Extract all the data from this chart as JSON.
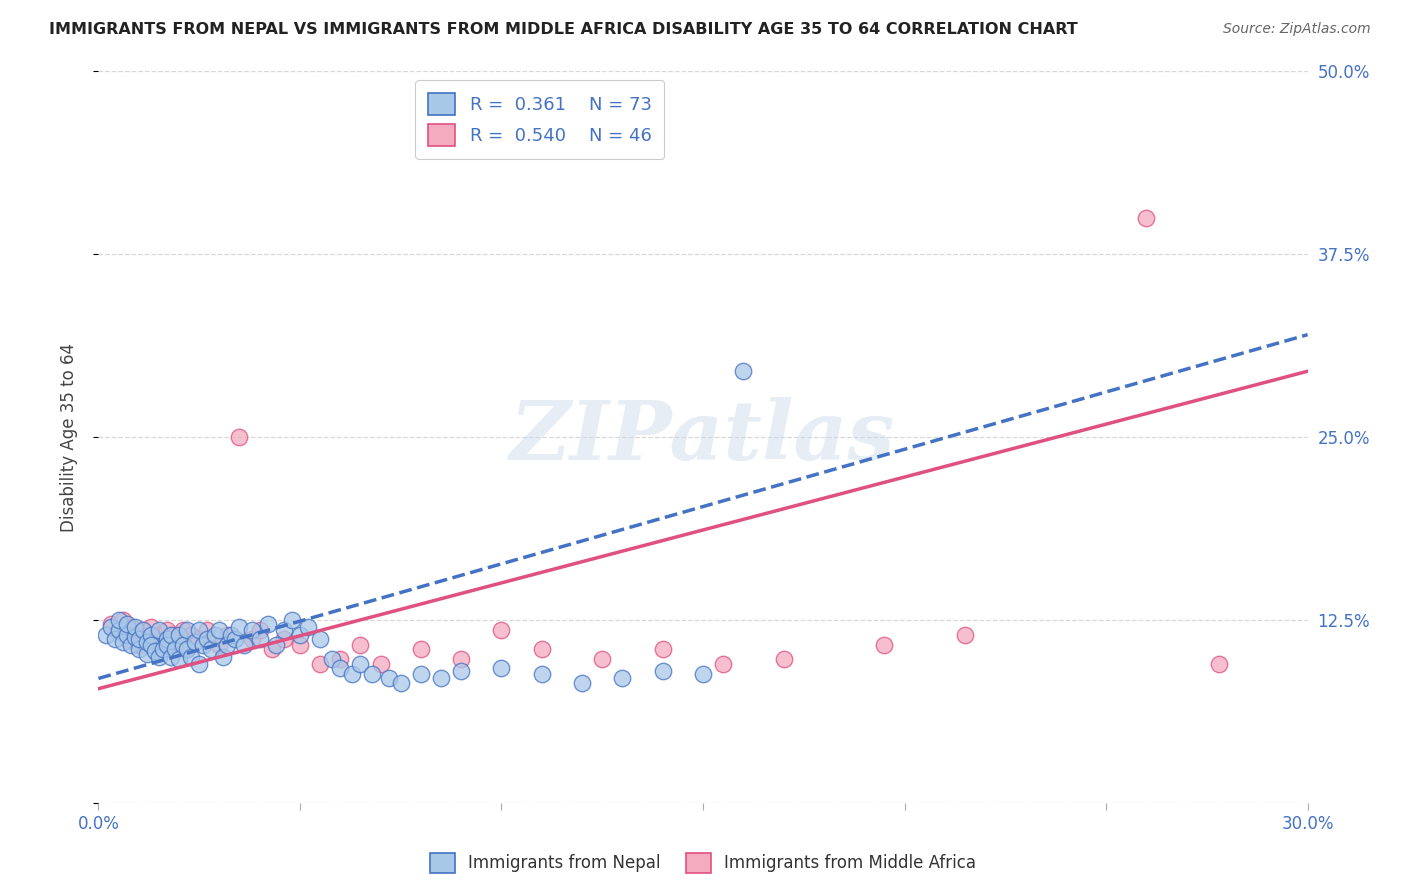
{
  "title": "IMMIGRANTS FROM NEPAL VS IMMIGRANTS FROM MIDDLE AFRICA DISABILITY AGE 35 TO 64 CORRELATION CHART",
  "source": "Source: ZipAtlas.com",
  "ylabel_label": "Disability Age 35 to 64",
  "x_min": 0.0,
  "x_max": 0.3,
  "y_min": 0.0,
  "y_max": 0.5,
  "x_ticks": [
    0.0,
    0.05,
    0.1,
    0.15,
    0.2,
    0.25,
    0.3
  ],
  "y_ticks": [
    0.0,
    0.125,
    0.25,
    0.375,
    0.5
  ],
  "y_tick_labels": [
    "",
    "12.5%",
    "25.0%",
    "37.5%",
    "50.0%"
  ],
  "nepal_R": 0.361,
  "nepal_N": 73,
  "africa_R": 0.54,
  "africa_N": 46,
  "nepal_color": "#a8c8e8",
  "nepal_edge_color": "#4472c4",
  "africa_color": "#f4aabf",
  "africa_edge_color": "#e05080",
  "nepal_line_color": "#4472c4",
  "africa_line_color": "#e05080",
  "nepal_line_x": [
    0.0,
    0.3
  ],
  "nepal_line_y": [
    0.085,
    0.32
  ],
  "africa_line_x": [
    0.0,
    0.3
  ],
  "africa_line_y": [
    0.078,
    0.295
  ],
  "nepal_scatter_x": [
    0.002,
    0.003,
    0.004,
    0.005,
    0.005,
    0.006,
    0.007,
    0.007,
    0.008,
    0.009,
    0.009,
    0.01,
    0.01,
    0.011,
    0.012,
    0.012,
    0.013,
    0.013,
    0.014,
    0.015,
    0.015,
    0.016,
    0.017,
    0.017,
    0.018,
    0.018,
    0.019,
    0.02,
    0.02,
    0.021,
    0.022,
    0.022,
    0.023,
    0.024,
    0.025,
    0.025,
    0.026,
    0.027,
    0.028,
    0.029,
    0.03,
    0.031,
    0.032,
    0.033,
    0.034,
    0.035,
    0.036,
    0.038,
    0.04,
    0.042,
    0.044,
    0.046,
    0.048,
    0.05,
    0.052,
    0.055,
    0.058,
    0.06,
    0.063,
    0.065,
    0.068,
    0.072,
    0.075,
    0.08,
    0.085,
    0.09,
    0.1,
    0.11,
    0.12,
    0.13,
    0.14,
    0.15,
    0.16
  ],
  "nepal_scatter_y": [
    0.115,
    0.12,
    0.112,
    0.118,
    0.125,
    0.11,
    0.115,
    0.122,
    0.108,
    0.113,
    0.12,
    0.105,
    0.112,
    0.118,
    0.102,
    0.11,
    0.115,
    0.108,
    0.104,
    0.1,
    0.118,
    0.105,
    0.112,
    0.108,
    0.1,
    0.115,
    0.105,
    0.098,
    0.115,
    0.108,
    0.105,
    0.118,
    0.1,
    0.11,
    0.095,
    0.118,
    0.108,
    0.112,
    0.105,
    0.115,
    0.118,
    0.1,
    0.108,
    0.115,
    0.112,
    0.12,
    0.108,
    0.118,
    0.112,
    0.122,
    0.108,
    0.118,
    0.125,
    0.115,
    0.12,
    0.112,
    0.098,
    0.092,
    0.088,
    0.095,
    0.088,
    0.085,
    0.082,
    0.088,
    0.085,
    0.09,
    0.092,
    0.088,
    0.082,
    0.085,
    0.09,
    0.088,
    0.295
  ],
  "africa_scatter_x": [
    0.003,
    0.005,
    0.006,
    0.007,
    0.008,
    0.009,
    0.01,
    0.011,
    0.012,
    0.013,
    0.014,
    0.015,
    0.016,
    0.017,
    0.018,
    0.019,
    0.02,
    0.021,
    0.022,
    0.023,
    0.025,
    0.027,
    0.03,
    0.032,
    0.035,
    0.038,
    0.04,
    0.043,
    0.046,
    0.05,
    0.055,
    0.06,
    0.065,
    0.07,
    0.08,
    0.09,
    0.1,
    0.11,
    0.125,
    0.14,
    0.155,
    0.17,
    0.195,
    0.215,
    0.26,
    0.278
  ],
  "africa_scatter_y": [
    0.122,
    0.118,
    0.125,
    0.112,
    0.12,
    0.115,
    0.108,
    0.118,
    0.112,
    0.12,
    0.108,
    0.115,
    0.112,
    0.118,
    0.108,
    0.115,
    0.112,
    0.118,
    0.105,
    0.115,
    0.112,
    0.118,
    0.108,
    0.115,
    0.25,
    0.112,
    0.118,
    0.105,
    0.112,
    0.108,
    0.095,
    0.098,
    0.108,
    0.095,
    0.105,
    0.098,
    0.118,
    0.105,
    0.098,
    0.105,
    0.095,
    0.098,
    0.108,
    0.115,
    0.4,
    0.095
  ],
  "watermark": "ZIPatlas",
  "background_color": "#ffffff",
  "grid_color": "#d8d8d8",
  "axis_label_color": "#4472c4",
  "title_color": "#222222",
  "source_color": "#666666"
}
